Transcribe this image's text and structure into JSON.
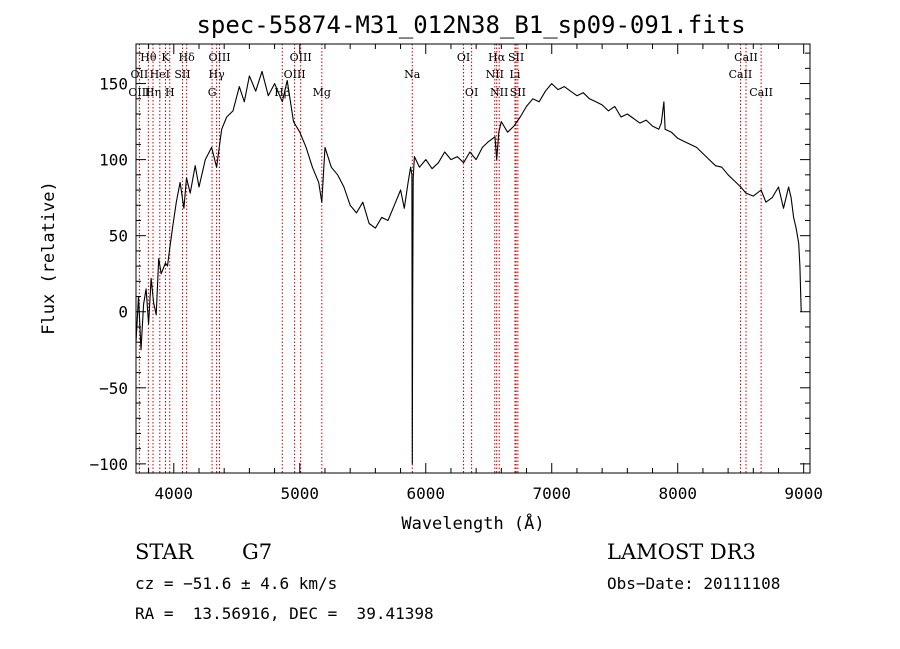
{
  "chart_data": {
    "type": "line",
    "title": "spec-55874-M31_012N38_B1_sp09-091.fits",
    "xlabel": "Wavelength (Å)",
    "ylabel": "Flux (relative)",
    "xlim": [
      3700,
      9050
    ],
    "ylim": [
      -106,
      176
    ],
    "x_ticks": [
      4000,
      5000,
      6000,
      7000,
      8000,
      9000
    ],
    "y_ticks": [
      -100,
      -50,
      0,
      50,
      100,
      150
    ],
    "grid": false,
    "series": [
      {
        "name": "spectrum",
        "x": [
          3700,
          3720,
          3740,
          3760,
          3780,
          3800,
          3820,
          3840,
          3860,
          3880,
          3900,
          3933,
          3950,
          3968,
          3990,
          4020,
          4050,
          4080,
          4101,
          4130,
          4170,
          4200,
          4250,
          4300,
          4340,
          4380,
          4420,
          4470,
          4520,
          4560,
          4600,
          4650,
          4700,
          4750,
          4800,
          4861,
          4900,
          4950,
          5000,
          5050,
          5100,
          5150,
          5175,
          5200,
          5250,
          5300,
          5350,
          5400,
          5450,
          5500,
          5550,
          5600,
          5650,
          5700,
          5750,
          5800,
          5830,
          5860,
          5880,
          5890,
          5893,
          5896,
          5900,
          5910,
          5950,
          6000,
          6050,
          6100,
          6150,
          6200,
          6250,
          6300,
          6350,
          6400,
          6450,
          6500,
          6550,
          6563,
          6580,
          6600,
          6650,
          6700,
          6750,
          6800,
          6850,
          6900,
          6950,
          7000,
          7050,
          7100,
          7150,
          7200,
          7250,
          7300,
          7350,
          7400,
          7450,
          7500,
          7550,
          7600,
          7650,
          7700,
          7750,
          7800,
          7850,
          7870,
          7890,
          7900,
          7950,
          8000,
          8050,
          8100,
          8150,
          8200,
          8250,
          8300,
          8350,
          8400,
          8450,
          8500,
          8542,
          8600,
          8662,
          8700,
          8750,
          8800,
          8840,
          8880,
          8900,
          8920,
          8940,
          8950,
          8960,
          8970,
          8980
        ],
        "values": [
          -20,
          10,
          -25,
          5,
          15,
          -8,
          22,
          6,
          -2,
          35,
          25,
          32,
          30,
          42,
          55,
          72,
          85,
          68,
          88,
          78,
          96,
          82,
          100,
          108,
          95,
          120,
          128,
          132,
          148,
          138,
          155,
          145,
          158,
          142,
          150,
          138,
          152,
          125,
          118,
          108,
          95,
          85,
          72,
          108,
          95,
          90,
          82,
          70,
          65,
          72,
          58,
          55,
          62,
          60,
          70,
          80,
          68,
          85,
          95,
          90,
          -100,
          10,
          88,
          102,
          95,
          100,
          94,
          98,
          105,
          100,
          102,
          98,
          105,
          100,
          108,
          112,
          115,
          100,
          118,
          125,
          118,
          122,
          128,
          135,
          140,
          138,
          145,
          150,
          146,
          148,
          145,
          142,
          144,
          140,
          138,
          136,
          132,
          135,
          128,
          130,
          127,
          124,
          126,
          122,
          120,
          124,
          138,
          120,
          118,
          114,
          112,
          110,
          108,
          104,
          100,
          96,
          95,
          90,
          86,
          82,
          78,
          76,
          80,
          72,
          75,
          82,
          68,
          82,
          75,
          62,
          55,
          50,
          45,
          30,
          0
        ]
      }
    ],
    "spectral_lines": [
      {
        "label": "Hθ",
        "wavelength": 3798,
        "row": 1
      },
      {
        "label": "K",
        "wavelength": 3934,
        "row": 1
      },
      {
        "label": "Hδ",
        "wavelength": 4102,
        "row": 1
      },
      {
        "label": "OIII",
        "wavelength": 4363,
        "row": 1
      },
      {
        "label": "OIII",
        "wavelength": 5007,
        "row": 1
      },
      {
        "label": "OI",
        "wavelength": 6300,
        "row": 1
      },
      {
        "label": "Hα",
        "wavelength": 6563,
        "row": 1
      },
      {
        "label": "SII",
        "wavelength": 6717,
        "row": 1
      },
      {
        "label": "CaII",
        "wavelength": 8542,
        "row": 1
      },
      {
        "label": "OII",
        "wavelength": 3727,
        "row": 2
      },
      {
        "label": "HeI",
        "wavelength": 3889,
        "row": 2
      },
      {
        "label": "SII",
        "wavelength": 4069,
        "row": 2
      },
      {
        "label": "Hγ",
        "wavelength": 4340,
        "row": 2
      },
      {
        "label": "OIII",
        "wavelength": 4959,
        "row": 2
      },
      {
        "label": "Na",
        "wavelength": 5893,
        "row": 2
      },
      {
        "label": "NII",
        "wavelength": 6548,
        "row": 2
      },
      {
        "label": "Li",
        "wavelength": 6708,
        "row": 2
      },
      {
        "label": "CaII",
        "wavelength": 8498,
        "row": 2
      },
      {
        "label": "OIII",
        "wavelength": 3727,
        "row": 3
      },
      {
        "label": "Hη",
        "wavelength": 3835,
        "row": 3
      },
      {
        "label": "H",
        "wavelength": 3968,
        "row": 3
      },
      {
        "label": "G",
        "wavelength": 4304,
        "row": 3
      },
      {
        "label": "Hβ",
        "wavelength": 4861,
        "row": 3
      },
      {
        "label": "Mg",
        "wavelength": 5175,
        "row": 3
      },
      {
        "label": "OI",
        "wavelength": 6364,
        "row": 3
      },
      {
        "label": "NII",
        "wavelength": 6583,
        "row": 3
      },
      {
        "label": "SII",
        "wavelength": 6731,
        "row": 3
      },
      {
        "label": "CaII",
        "wavelength": 8662,
        "row": 3
      }
    ]
  },
  "info": {
    "object_class": "STAR",
    "subclass": "G7",
    "survey": "LAMOST DR3",
    "cz": "cz = −51.6 ± 4.6 km/s",
    "obs_date": "Obs−Date: 20111108",
    "coords": "RA =  13.56916, DEC =  39.41398"
  },
  "colors": {
    "spectrum": "#000000",
    "line_marker": "#c00000",
    "axis": "#000000"
  }
}
